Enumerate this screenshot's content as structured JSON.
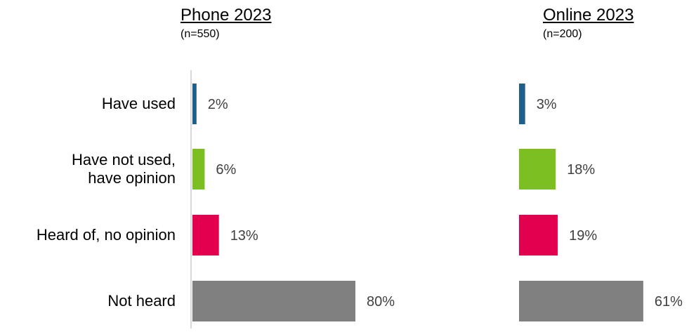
{
  "chart_data": {
    "type": "bar",
    "orientation": "horizontal",
    "categories": [
      "Have used",
      "Have not used,\nhave opinion",
      "Heard of, no opinion",
      "Not heard"
    ],
    "category_colors": [
      "#1F5F8B",
      "#7BBF21",
      "#E3004F",
      "#808080"
    ],
    "panels": [
      {
        "title": "Phone 2023",
        "subtitle": "(n=550)",
        "values": [
          2,
          6,
          13,
          80
        ],
        "labels": [
          "2%",
          "6%",
          "13%",
          "80%"
        ]
      },
      {
        "title": "Online 2023",
        "subtitle": "(n=200)",
        "values": [
          3,
          18,
          19,
          61
        ],
        "labels": [
          "3%",
          "18%",
          "19%",
          "61%"
        ]
      }
    ],
    "axis_line": "left-of-first-panel",
    "grid": false
  }
}
